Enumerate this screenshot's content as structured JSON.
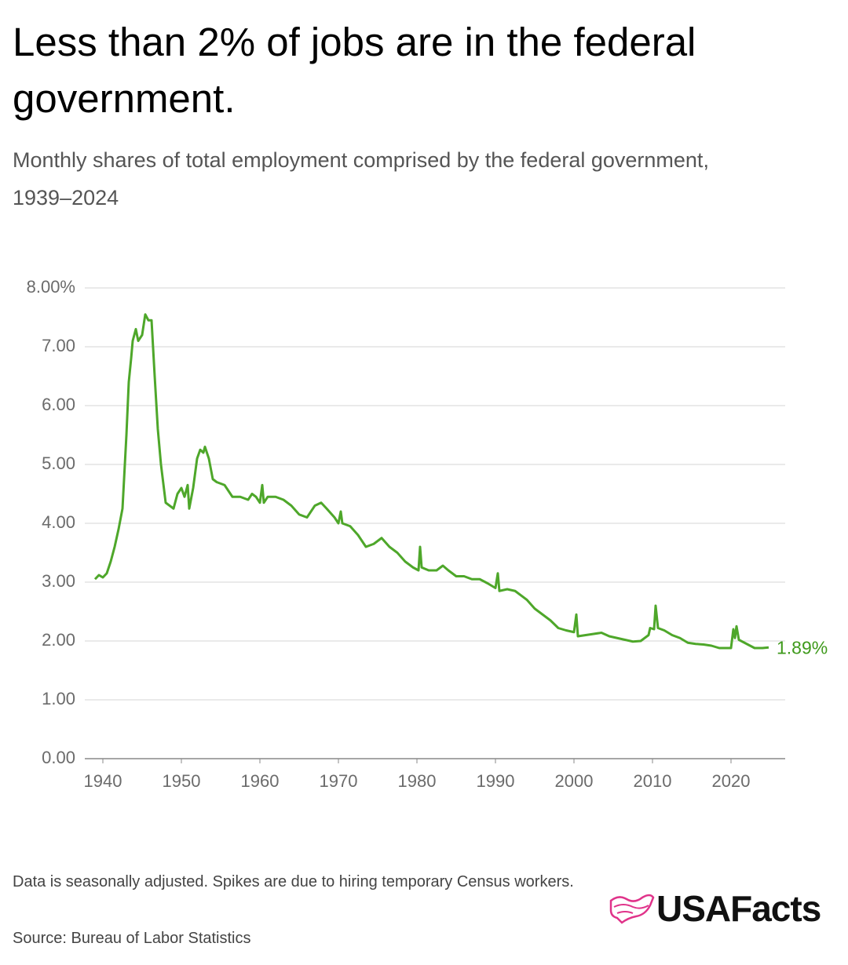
{
  "chart_data": {
    "type": "line",
    "title": "Less than 2% of jobs are in the federal government.",
    "subtitle": "Monthly shares of total employment comprised by the federal government, 1939–2024",
    "note": "Data is seasonally adjusted. Spikes are due to hiring temporary Census workers.",
    "source": "Source: Bureau of Labor Statistics",
    "brand": "USAFacts",
    "x": [
      1939,
      1939.5,
      1940,
      1940.5,
      1941,
      1941.5,
      1942,
      1942.5,
      1943,
      1943.3,
      1943.6,
      1943.8,
      1944.2,
      1944.5,
      1945,
      1945.4,
      1945.8,
      1946.2,
      1946.6,
      1947,
      1947.4,
      1948,
      1948.5,
      1949,
      1949.5,
      1950,
      1950.4,
      1950.8,
      1951,
      1951.5,
      1952,
      1952.4,
      1952.8,
      1953,
      1953.5,
      1954,
      1954.5,
      1955.5,
      1956.5,
      1957.5,
      1958.5,
      1959,
      1959.5,
      1960,
      1960.3,
      1960.5,
      1961,
      1962,
      1963,
      1964,
      1965,
      1966,
      1967,
      1967.8,
      1968.5,
      1969.5,
      1970,
      1970.3,
      1970.5,
      1971.5,
      1972.5,
      1973.5,
      1974.5,
      1975.5,
      1976.5,
      1977.5,
      1978.5,
      1979.5,
      1980.2,
      1980.4,
      1980.6,
      1981.5,
      1982.5,
      1983.3,
      1984,
      1985,
      1986,
      1987,
      1988,
      1989,
      1990,
      1990.3,
      1990.5,
      1991.5,
      1992.5,
      1994,
      1995,
      1996,
      1997,
      1998,
      1999,
      2000,
      2000.3,
      2000.5,
      2001.5,
      2002.5,
      2003.5,
      2004.5,
      2005.5,
      2006.5,
      2007.5,
      2008.5,
      2009.5,
      2009.7,
      2010.2,
      2010.4,
      2010.7,
      2011.5,
      2012.5,
      2013.5,
      2014.5,
      2015.5,
      2016.5,
      2017.5,
      2018.5,
      2019.5,
      2020,
      2020.3,
      2020.5,
      2020.7,
      2021,
      2022,
      2023,
      2024,
      2024.8
    ],
    "series": [
      {
        "color": "#4ea72a",
        "label_color": "#3f9a1c",
        "values": [
          3.05,
          3.12,
          3.08,
          3.15,
          3.35,
          3.6,
          3.9,
          4.25,
          5.5,
          6.4,
          6.8,
          7.1,
          7.3,
          7.1,
          7.2,
          7.55,
          7.45,
          7.45,
          6.5,
          5.6,
          5.0,
          4.35,
          4.3,
          4.25,
          4.5,
          4.6,
          4.45,
          4.65,
          4.25,
          4.6,
          5.1,
          5.25,
          5.2,
          5.3,
          5.1,
          4.75,
          4.7,
          4.65,
          4.45,
          4.45,
          4.4,
          4.5,
          4.45,
          4.35,
          4.65,
          4.35,
          4.45,
          4.45,
          4.4,
          4.3,
          4.15,
          4.1,
          4.3,
          4.35,
          4.25,
          4.1,
          4.0,
          4.2,
          4.0,
          3.95,
          3.8,
          3.6,
          3.65,
          3.75,
          3.6,
          3.5,
          3.35,
          3.25,
          3.2,
          3.6,
          3.25,
          3.2,
          3.2,
          3.28,
          3.2,
          3.1,
          3.1,
          3.05,
          3.05,
          2.98,
          2.9,
          3.15,
          2.85,
          2.88,
          2.85,
          2.7,
          2.55,
          2.45,
          2.35,
          2.22,
          2.18,
          2.15,
          2.45,
          2.08,
          2.1,
          2.12,
          2.14,
          2.08,
          2.05,
          2.02,
          1.99,
          2.0,
          2.1,
          2.22,
          2.2,
          2.6,
          2.22,
          2.18,
          2.1,
          2.05,
          1.97,
          1.95,
          1.94,
          1.92,
          1.88,
          1.88,
          1.88,
          2.2,
          2.05,
          2.25,
          2.02,
          1.95,
          1.88,
          1.88,
          1.89
        ],
        "value_labels": [
          null,
          null,
          null,
          null,
          null,
          null,
          null,
          null,
          null,
          null,
          null,
          null,
          null,
          null,
          null,
          null,
          null,
          null,
          null,
          null,
          null,
          null,
          null,
          null,
          null,
          null,
          null,
          null,
          null,
          null,
          null,
          null,
          null,
          null,
          null,
          null,
          null,
          null,
          null,
          null,
          null,
          null,
          null,
          null,
          null,
          null,
          null,
          null,
          null,
          null,
          null,
          null,
          null,
          null,
          null,
          null,
          null,
          null,
          null,
          null,
          null,
          null,
          null,
          null,
          null,
          null,
          null,
          null,
          null,
          null,
          null,
          null,
          null,
          null,
          null,
          null,
          null,
          null,
          null,
          null,
          null,
          null,
          null,
          null,
          null,
          null,
          null,
          null,
          null,
          null,
          null,
          null,
          null,
          null,
          null,
          null,
          null,
          null,
          null,
          null,
          null,
          null,
          null,
          null,
          null,
          null,
          null,
          null,
          null,
          null,
          null,
          null,
          null,
          null,
          null,
          null,
          null,
          null,
          null,
          null,
          null,
          null,
          null,
          null,
          "1.89%"
        ]
      }
    ],
    "xlim": [
      1937.7,
      2026.9
    ],
    "xticks": [
      1940,
      1950,
      1960,
      1970,
      1980,
      1990,
      2000,
      2010,
      2020
    ],
    "ylim": [
      0,
      8
    ],
    "yticks": [
      {
        "value": 0,
        "label": "0.00"
      },
      {
        "value": 1,
        "label": "1.00"
      },
      {
        "value": 2,
        "label": "2.00"
      },
      {
        "value": 3,
        "label": "3.00"
      },
      {
        "value": 4,
        "label": "4.00"
      },
      {
        "value": 5,
        "label": "5.00"
      },
      {
        "value": 6,
        "label": "6.00"
      },
      {
        "value": 7,
        "label": "7.00"
      },
      {
        "value": 8,
        "label": "8.00%"
      }
    ],
    "grid": true
  }
}
